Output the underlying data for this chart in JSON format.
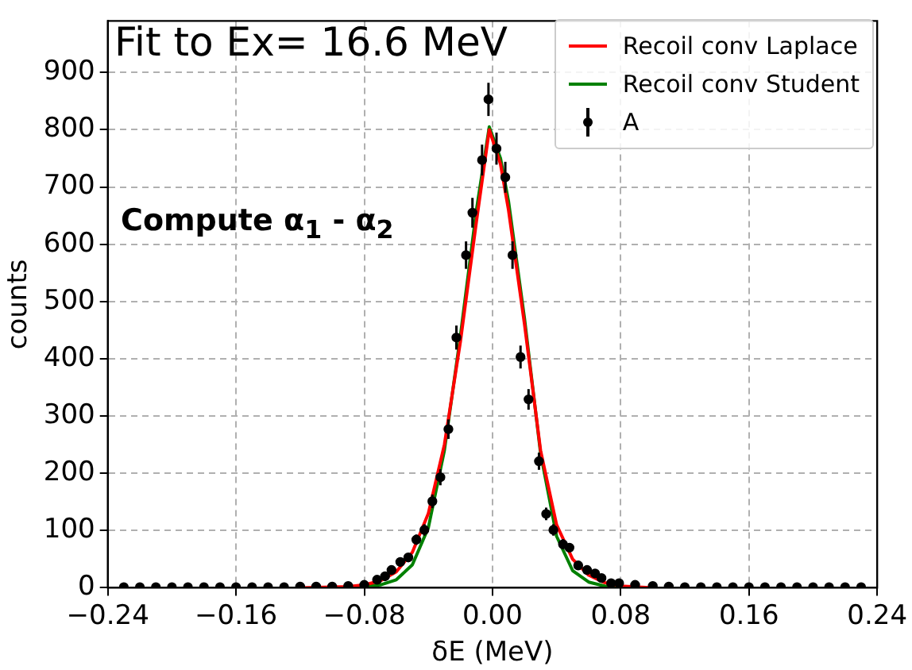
{
  "chart_data": {
    "type": "scatter",
    "title": "Fit to Ex= 16.6 MeV",
    "xlabel": "δE (MeV)",
    "ylabel": "counts",
    "annotations": [
      "Compute α$_{1}$ - α$_{2}$"
    ],
    "xlim": [
      -0.24,
      0.24
    ],
    "xticks": [
      {
        "value": -0.24,
        "label": "−0.24"
      },
      {
        "value": -0.16,
        "label": "−0.16"
      },
      {
        "value": -0.08,
        "label": "−0.08"
      },
      {
        "value": 0,
        "label": "0.00"
      },
      {
        "value": 0.08,
        "label": "0.08"
      },
      {
        "value": 0.16,
        "label": "0.16"
      },
      {
        "value": 0.24,
        "label": "0.24"
      }
    ],
    "ylim": [
      0,
      990
    ],
    "yticks": [
      0,
      100,
      200,
      300,
      400,
      500,
      600,
      700,
      800,
      900
    ],
    "grid": true,
    "legend": "top right",
    "series": [
      {
        "name": "Recoil conv Laplace",
        "type": "line",
        "color": "#ff0000",
        "x": [
          -0.12,
          -0.09,
          -0.08,
          -0.07,
          -0.06,
          -0.05,
          -0.04,
          -0.03,
          -0.02,
          -0.01,
          -0.002,
          0.005,
          0.01,
          0.02,
          0.03,
          0.04,
          0.05,
          0.06,
          0.07,
          0.08,
          0.1
        ],
        "values": [
          0,
          2,
          5,
          12,
          28,
          62,
          130,
          250,
          430,
          640,
          800,
          740,
          660,
          460,
          240,
          110,
          50,
          22,
          9,
          3,
          0
        ]
      },
      {
        "name": "Recoil conv Student",
        "type": "line",
        "color": "#008000",
        "x": [
          -0.1,
          -0.08,
          -0.07,
          -0.06,
          -0.05,
          -0.04,
          -0.03,
          -0.02,
          -0.01,
          -0.002,
          0.005,
          0.01,
          0.02,
          0.03,
          0.04,
          0.05,
          0.06,
          0.07,
          0.08
        ],
        "values": [
          0,
          2,
          5,
          14,
          40,
          105,
          240,
          440,
          660,
          805,
          750,
          675,
          470,
          235,
          90,
          30,
          10,
          3,
          1
        ]
      },
      {
        "name": "A",
        "type": "scatter",
        "color": "#000000",
        "marker": "circle",
        "x": [
          -0.23,
          -0.22,
          -0.21,
          -0.2,
          -0.19,
          -0.18,
          -0.17,
          -0.16,
          -0.15,
          -0.14,
          -0.13,
          -0.12,
          -0.11,
          -0.1,
          -0.09,
          -0.08,
          -0.072,
          -0.067,
          -0.063,
          -0.0575,
          -0.0525,
          -0.0475,
          -0.0425,
          -0.0375,
          -0.0325,
          -0.0275,
          -0.0225,
          -0.0165,
          -0.0125,
          -0.0065,
          -0.0025,
          0.0025,
          0.008,
          0.0125,
          0.0175,
          0.0225,
          0.029,
          0.0335,
          0.038,
          0.044,
          0.048,
          0.0535,
          0.059,
          0.064,
          0.068,
          0.074,
          0.079,
          0.089,
          0.1,
          0.11,
          0.12,
          0.13,
          0.14,
          0.15,
          0.16,
          0.17,
          0.18,
          0.19,
          0.2,
          0.21,
          0.22,
          0.23
        ],
        "values": [
          1,
          1,
          1,
          1,
          1,
          1,
          1,
          1,
          1,
          1,
          1,
          2,
          2,
          2,
          3,
          5,
          14,
          20,
          31,
          45,
          53,
          84,
          101,
          151,
          193,
          277,
          437,
          581,
          655,
          747,
          853,
          767,
          717,
          581,
          403,
          329,
          221,
          129,
          101,
          76,
          70,
          39,
          31,
          25,
          17,
          8,
          8,
          5,
          3,
          2,
          1,
          1,
          1,
          1,
          1,
          1,
          1,
          1,
          1,
          1,
          1,
          1
        ],
        "errors": [
          null,
          null,
          null,
          null,
          null,
          null,
          null,
          null,
          null,
          null,
          null,
          null,
          null,
          null,
          2,
          2,
          4,
          4,
          6,
          7,
          7,
          9,
          10,
          12,
          14,
          17,
          21,
          24,
          26,
          27,
          29,
          28,
          27,
          24,
          20,
          18,
          15,
          11,
          10,
          9,
          8,
          6,
          6,
          5,
          4,
          3,
          3,
          2,
          2,
          null,
          null,
          null,
          null,
          null,
          null,
          null,
          null,
          null,
          null,
          null,
          null,
          null
        ]
      }
    ]
  }
}
